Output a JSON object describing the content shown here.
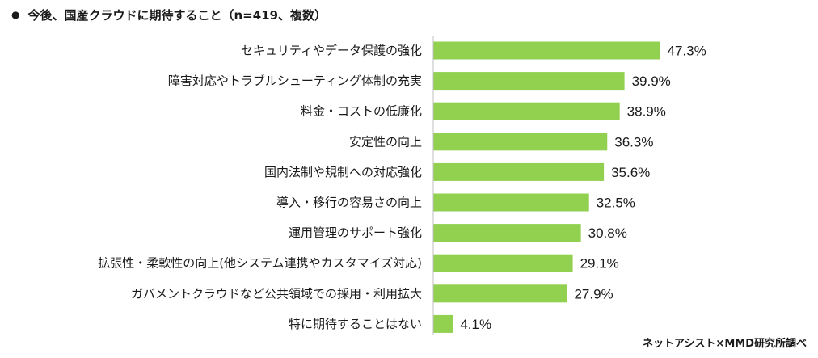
{
  "header": {
    "bullet": "●",
    "title": "今後、国産クラウドに期待すること（n=419、複数）"
  },
  "source": "ネットアシスト×MMD研究所調べ",
  "colors": {
    "bar": "#92d050",
    "axis": "#bfbfbf",
    "text": "#1a1a1a"
  },
  "chart_data": {
    "type": "bar",
    "orientation": "horizontal",
    "categories": [
      "セキュリティやデータ保護の強化",
      "障害対応やトラブルシューティング体制の充実",
      "料金・コストの低廉化",
      "安定性の向上",
      "国内法制や規制への対応強化",
      "導入・移行の容易さの向上",
      "運用管理のサポート強化",
      "拡張性・柔軟性の向上(他システム連携やカスタマイズ対応)",
      "ガバメントクラウドなど公共領域での採用・利用拡大",
      "特に期待することはない"
    ],
    "values": [
      47.3,
      39.9,
      38.9,
      36.3,
      35.6,
      32.5,
      30.8,
      29.1,
      27.9,
      4.1
    ],
    "value_labels": [
      "47.3%",
      "39.9%",
      "38.9%",
      "36.3%",
      "35.6%",
      "32.5%",
      "30.8%",
      "29.1%",
      "27.9%",
      "4.1%"
    ],
    "xlim": [
      0,
      100
    ]
  }
}
